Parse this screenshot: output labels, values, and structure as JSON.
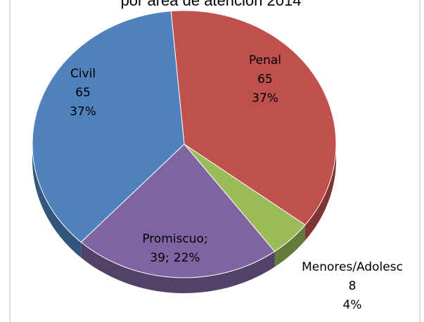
{
  "chart_data": {
    "type": "pie3d",
    "title": "por área de atención 2014",
    "categories": [
      "Penal",
      "Menores/Adolesc",
      "Promiscuo;",
      "Civil"
    ],
    "values": [
      65,
      8,
      39,
      65
    ],
    "value_labels": [
      "65",
      "8",
      "39;",
      "65"
    ],
    "percents": [
      37,
      4,
      22,
      37
    ],
    "percent_labels": [
      "37%",
      "4%",
      "22%",
      "37%"
    ],
    "colors": [
      "#c0504d",
      "#9bbb59",
      "#8064a2",
      "#4f81bd"
    ]
  }
}
